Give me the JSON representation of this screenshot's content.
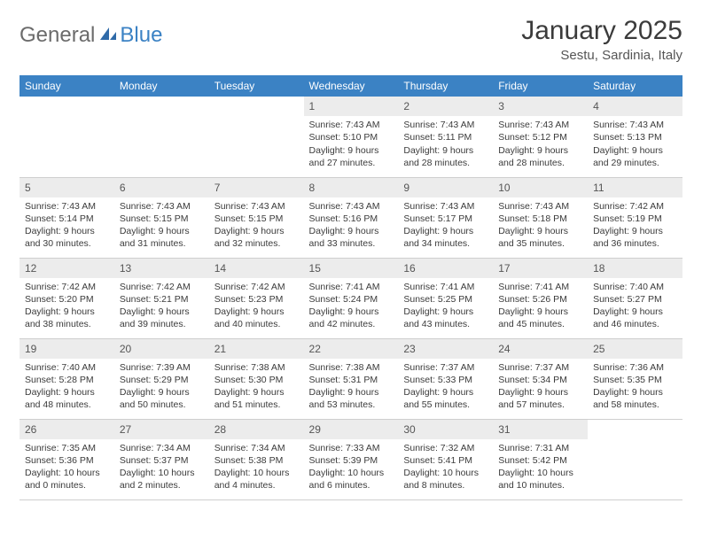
{
  "logo": {
    "part1": "General",
    "part2": "Blue"
  },
  "title": "January 2025",
  "location": "Sestu, Sardinia, Italy",
  "colors": {
    "header_bg": "#3b82c4",
    "header_text": "#ffffff",
    "daynum_bg": "#ececec",
    "text": "#3b3b3b",
    "logo_gray": "#6b6b6b",
    "logo_blue": "#3b82c4",
    "border": "#cfcfcf"
  },
  "weekdays": [
    "Sunday",
    "Monday",
    "Tuesday",
    "Wednesday",
    "Thursday",
    "Friday",
    "Saturday"
  ],
  "weeks": [
    [
      {
        "blank": true
      },
      {
        "blank": true
      },
      {
        "blank": true
      },
      {
        "day": "1",
        "sunrise": "Sunrise: 7:43 AM",
        "sunset": "Sunset: 5:10 PM",
        "dl1": "Daylight: 9 hours",
        "dl2": "and 27 minutes."
      },
      {
        "day": "2",
        "sunrise": "Sunrise: 7:43 AM",
        "sunset": "Sunset: 5:11 PM",
        "dl1": "Daylight: 9 hours",
        "dl2": "and 28 minutes."
      },
      {
        "day": "3",
        "sunrise": "Sunrise: 7:43 AM",
        "sunset": "Sunset: 5:12 PM",
        "dl1": "Daylight: 9 hours",
        "dl2": "and 28 minutes."
      },
      {
        "day": "4",
        "sunrise": "Sunrise: 7:43 AM",
        "sunset": "Sunset: 5:13 PM",
        "dl1": "Daylight: 9 hours",
        "dl2": "and 29 minutes."
      }
    ],
    [
      {
        "day": "5",
        "sunrise": "Sunrise: 7:43 AM",
        "sunset": "Sunset: 5:14 PM",
        "dl1": "Daylight: 9 hours",
        "dl2": "and 30 minutes."
      },
      {
        "day": "6",
        "sunrise": "Sunrise: 7:43 AM",
        "sunset": "Sunset: 5:15 PM",
        "dl1": "Daylight: 9 hours",
        "dl2": "and 31 minutes."
      },
      {
        "day": "7",
        "sunrise": "Sunrise: 7:43 AM",
        "sunset": "Sunset: 5:15 PM",
        "dl1": "Daylight: 9 hours",
        "dl2": "and 32 minutes."
      },
      {
        "day": "8",
        "sunrise": "Sunrise: 7:43 AM",
        "sunset": "Sunset: 5:16 PM",
        "dl1": "Daylight: 9 hours",
        "dl2": "and 33 minutes."
      },
      {
        "day": "9",
        "sunrise": "Sunrise: 7:43 AM",
        "sunset": "Sunset: 5:17 PM",
        "dl1": "Daylight: 9 hours",
        "dl2": "and 34 minutes."
      },
      {
        "day": "10",
        "sunrise": "Sunrise: 7:43 AM",
        "sunset": "Sunset: 5:18 PM",
        "dl1": "Daylight: 9 hours",
        "dl2": "and 35 minutes."
      },
      {
        "day": "11",
        "sunrise": "Sunrise: 7:42 AM",
        "sunset": "Sunset: 5:19 PM",
        "dl1": "Daylight: 9 hours",
        "dl2": "and 36 minutes."
      }
    ],
    [
      {
        "day": "12",
        "sunrise": "Sunrise: 7:42 AM",
        "sunset": "Sunset: 5:20 PM",
        "dl1": "Daylight: 9 hours",
        "dl2": "and 38 minutes."
      },
      {
        "day": "13",
        "sunrise": "Sunrise: 7:42 AM",
        "sunset": "Sunset: 5:21 PM",
        "dl1": "Daylight: 9 hours",
        "dl2": "and 39 minutes."
      },
      {
        "day": "14",
        "sunrise": "Sunrise: 7:42 AM",
        "sunset": "Sunset: 5:23 PM",
        "dl1": "Daylight: 9 hours",
        "dl2": "and 40 minutes."
      },
      {
        "day": "15",
        "sunrise": "Sunrise: 7:41 AM",
        "sunset": "Sunset: 5:24 PM",
        "dl1": "Daylight: 9 hours",
        "dl2": "and 42 minutes."
      },
      {
        "day": "16",
        "sunrise": "Sunrise: 7:41 AM",
        "sunset": "Sunset: 5:25 PM",
        "dl1": "Daylight: 9 hours",
        "dl2": "and 43 minutes."
      },
      {
        "day": "17",
        "sunrise": "Sunrise: 7:41 AM",
        "sunset": "Sunset: 5:26 PM",
        "dl1": "Daylight: 9 hours",
        "dl2": "and 45 minutes."
      },
      {
        "day": "18",
        "sunrise": "Sunrise: 7:40 AM",
        "sunset": "Sunset: 5:27 PM",
        "dl1": "Daylight: 9 hours",
        "dl2": "and 46 minutes."
      }
    ],
    [
      {
        "day": "19",
        "sunrise": "Sunrise: 7:40 AM",
        "sunset": "Sunset: 5:28 PM",
        "dl1": "Daylight: 9 hours",
        "dl2": "and 48 minutes."
      },
      {
        "day": "20",
        "sunrise": "Sunrise: 7:39 AM",
        "sunset": "Sunset: 5:29 PM",
        "dl1": "Daylight: 9 hours",
        "dl2": "and 50 minutes."
      },
      {
        "day": "21",
        "sunrise": "Sunrise: 7:38 AM",
        "sunset": "Sunset: 5:30 PM",
        "dl1": "Daylight: 9 hours",
        "dl2": "and 51 minutes."
      },
      {
        "day": "22",
        "sunrise": "Sunrise: 7:38 AM",
        "sunset": "Sunset: 5:31 PM",
        "dl1": "Daylight: 9 hours",
        "dl2": "and 53 minutes."
      },
      {
        "day": "23",
        "sunrise": "Sunrise: 7:37 AM",
        "sunset": "Sunset: 5:33 PM",
        "dl1": "Daylight: 9 hours",
        "dl2": "and 55 minutes."
      },
      {
        "day": "24",
        "sunrise": "Sunrise: 7:37 AM",
        "sunset": "Sunset: 5:34 PM",
        "dl1": "Daylight: 9 hours",
        "dl2": "and 57 minutes."
      },
      {
        "day": "25",
        "sunrise": "Sunrise: 7:36 AM",
        "sunset": "Sunset: 5:35 PM",
        "dl1": "Daylight: 9 hours",
        "dl2": "and 58 minutes."
      }
    ],
    [
      {
        "day": "26",
        "sunrise": "Sunrise: 7:35 AM",
        "sunset": "Sunset: 5:36 PM",
        "dl1": "Daylight: 10 hours",
        "dl2": "and 0 minutes."
      },
      {
        "day": "27",
        "sunrise": "Sunrise: 7:34 AM",
        "sunset": "Sunset: 5:37 PM",
        "dl1": "Daylight: 10 hours",
        "dl2": "and 2 minutes."
      },
      {
        "day": "28",
        "sunrise": "Sunrise: 7:34 AM",
        "sunset": "Sunset: 5:38 PM",
        "dl1": "Daylight: 10 hours",
        "dl2": "and 4 minutes."
      },
      {
        "day": "29",
        "sunrise": "Sunrise: 7:33 AM",
        "sunset": "Sunset: 5:39 PM",
        "dl1": "Daylight: 10 hours",
        "dl2": "and 6 minutes."
      },
      {
        "day": "30",
        "sunrise": "Sunrise: 7:32 AM",
        "sunset": "Sunset: 5:41 PM",
        "dl1": "Daylight: 10 hours",
        "dl2": "and 8 minutes."
      },
      {
        "day": "31",
        "sunrise": "Sunrise: 7:31 AM",
        "sunset": "Sunset: 5:42 PM",
        "dl1": "Daylight: 10 hours",
        "dl2": "and 10 minutes."
      },
      {
        "blank": true
      }
    ]
  ]
}
